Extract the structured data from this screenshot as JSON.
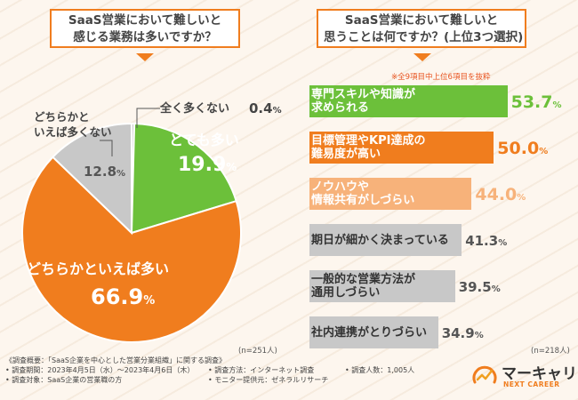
{
  "questions": {
    "left": {
      "line1": "SaaS営業において難しいと",
      "line2": "感じる業務は多いですか？"
    },
    "right": {
      "line1": "SaaS営業において難しいと",
      "line2": "思うことは何ですか？(上位3つ選択)"
    }
  },
  "chart_data": [
    {
      "type": "pie",
      "slices": [
        {
          "label": "全く多くない",
          "value": 0.4,
          "value_text": "0.4",
          "unit": "%",
          "color": "#c8c8c8"
        },
        {
          "label": "とても多い",
          "value": 19.9,
          "value_text": "19.9",
          "unit": "%",
          "color": "#6cc03a"
        },
        {
          "label": "どちらかといえば多い",
          "value": 66.9,
          "value_text": "66.9",
          "unit": "%",
          "color": "#f07d1e"
        },
        {
          "label_line1": "どちらかと",
          "label_line2": "いえば多くない",
          "value": 12.8,
          "value_text": "12.8",
          "unit": "%",
          "color": "#c8c8c8"
        }
      ],
      "n": "(n=251人)"
    },
    {
      "type": "bar",
      "orientation": "horizontal",
      "note": "※全9項目中上位6項目を抜粋",
      "xlim": [
        0,
        60
      ],
      "bars": [
        {
          "line1": "専門スキルや知識が",
          "line2": "求められる",
          "value": 53.7,
          "value_text": "53.7",
          "unit": "%",
          "color": "#6cc03a"
        },
        {
          "line1": "目標管理やKPI達成の",
          "line2": "難易度が高い",
          "value": 50.0,
          "value_text": "50.0",
          "unit": "%",
          "color": "#f07d1e"
        },
        {
          "line1": "ノウハウや",
          "line2": "情報共有がしづらい",
          "value": 44.0,
          "value_text": "44.0",
          "unit": "%",
          "color": "#f7b27a"
        },
        {
          "line1": "期日が細かく決まっている",
          "line2": "",
          "value": 41.3,
          "value_text": "41.3",
          "unit": "%",
          "color": "#c8c8c8"
        },
        {
          "line1": "一般的な営業方法が",
          "line2": "通用しづらい",
          "value": 39.5,
          "value_text": "39.5",
          "unit": "%",
          "color": "#c8c8c8"
        },
        {
          "line1": "社内連携がとりづらい",
          "line2": "",
          "value": 34.9,
          "value_text": "34.9",
          "unit": "%",
          "color": "#c8c8c8"
        }
      ],
      "n": "(n=218人)"
    }
  ],
  "footer": {
    "title": "《調査概要：「SaaS企業を中心とした営業分業組織」に関する調査》",
    "period": "• 調査期間：2023年4月5日（水）～2023年4月6日（木）",
    "target": "• 調査対象：SaaS企業の営業職の方",
    "method": "• 調査方法：インターネット調査",
    "provider": "• モニター提供元：ゼネラルリサーチ",
    "count": "• 調査人数：1,005人"
  },
  "logo": {
    "name": "マーキャリ",
    "sub": "NEXT CAREER"
  },
  "colors": {
    "accent": "#f07d1e",
    "green": "#6cc03a",
    "gray": "#c8c8c8",
    "light_orange": "#f7b27a"
  }
}
